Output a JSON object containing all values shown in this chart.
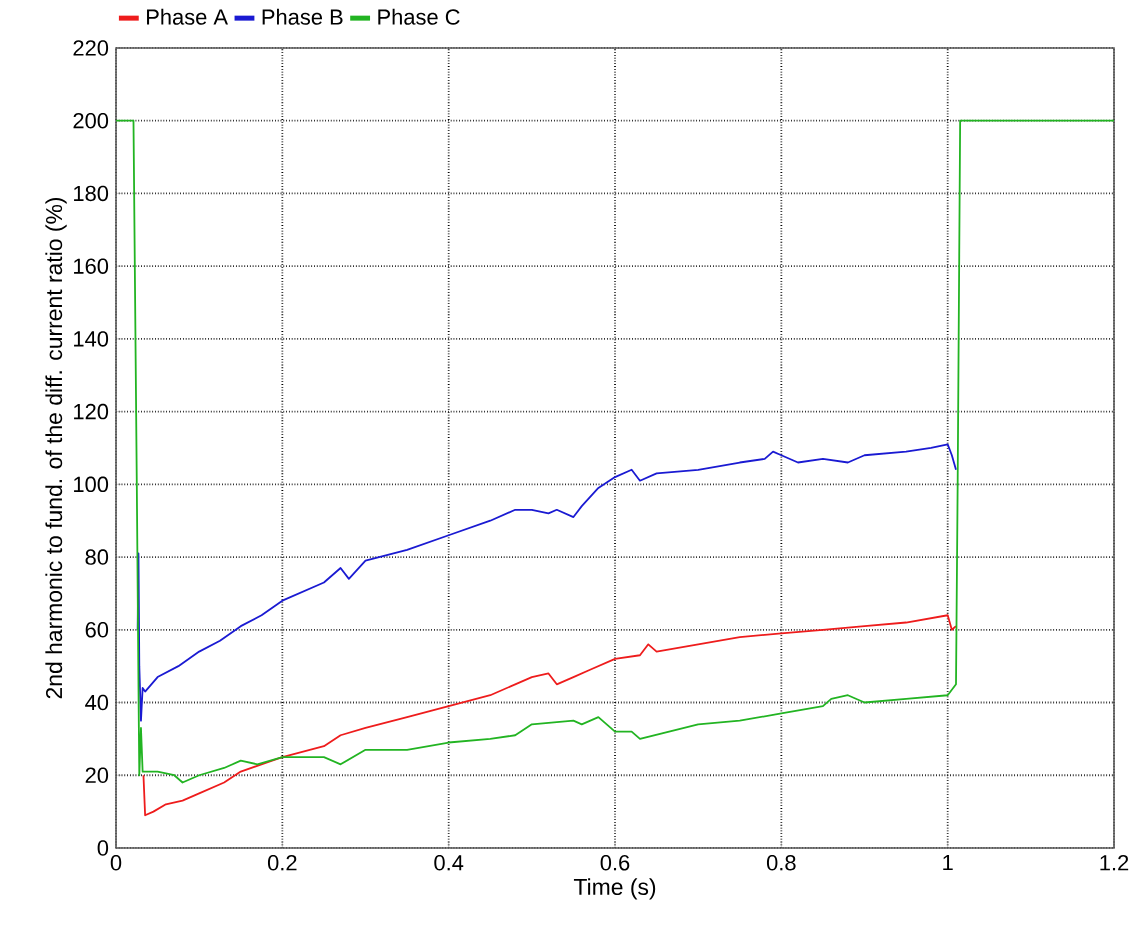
{
  "chart_data": {
    "type": "line",
    "xlabel": "Time (s)",
    "ylabel": "2nd harmonic to fund. of the diff. current ratio (%)",
    "xlim": [
      0,
      1.2
    ],
    "ylim": [
      0,
      220
    ],
    "xticks": [
      0,
      0.2,
      0.4,
      0.6,
      0.8,
      1,
      1.2
    ],
    "yticks": [
      0,
      20,
      40,
      60,
      80,
      100,
      120,
      140,
      160,
      180,
      200,
      220
    ],
    "grid": true,
    "legend": "top",
    "series": [
      {
        "name": "Phase A",
        "color": "#ee1c1c",
        "x": [
          0.033,
          0.035,
          0.045,
          0.06,
          0.08,
          0.1,
          0.13,
          0.15,
          0.2,
          0.25,
          0.27,
          0.3,
          0.35,
          0.4,
          0.45,
          0.48,
          0.5,
          0.52,
          0.53,
          0.55,
          0.57,
          0.6,
          0.63,
          0.64,
          0.65,
          0.7,
          0.75,
          0.8,
          0.85,
          0.9,
          0.95,
          1.0,
          1.005,
          1.01
        ],
        "values": [
          20,
          9,
          10,
          12,
          13,
          15,
          18,
          21,
          25,
          28,
          31,
          33,
          36,
          39,
          42,
          45,
          47,
          48,
          45,
          47,
          49,
          52,
          53,
          56,
          54,
          56,
          58,
          59,
          60,
          61,
          62,
          64,
          60,
          61
        ]
      },
      {
        "name": "Phase B",
        "color": "#1a1ad2",
        "x": [
          0.026,
          0.027,
          0.028,
          0.03,
          0.032,
          0.035,
          0.05,
          0.075,
          0.1,
          0.125,
          0.15,
          0.175,
          0.2,
          0.25,
          0.27,
          0.28,
          0.3,
          0.35,
          0.4,
          0.45,
          0.48,
          0.5,
          0.52,
          0.53,
          0.55,
          0.56,
          0.58,
          0.6,
          0.62,
          0.63,
          0.65,
          0.7,
          0.75,
          0.78,
          0.79,
          0.8,
          0.82,
          0.85,
          0.88,
          0.9,
          0.95,
          0.98,
          1.0,
          1.005,
          1.01
        ],
        "values": [
          60,
          81,
          50,
          35,
          44,
          43,
          47,
          50,
          54,
          57,
          61,
          64,
          68,
          73,
          77,
          74,
          79,
          82,
          86,
          90,
          93,
          93,
          92,
          93,
          91,
          94,
          99,
          102,
          104,
          101,
          103,
          104,
          106,
          107,
          109,
          108,
          106,
          107,
          106,
          108,
          109,
          110,
          111,
          108,
          104
        ]
      },
      {
        "name": "Phase C",
        "color": "#22b422",
        "x": [
          0,
          0.019,
          0.021,
          0.025,
          0.027,
          0.028,
          0.03,
          0.032,
          0.035,
          0.05,
          0.07,
          0.08,
          0.1,
          0.13,
          0.15,
          0.17,
          0.2,
          0.25,
          0.27,
          0.3,
          0.35,
          0.4,
          0.45,
          0.48,
          0.5,
          0.55,
          0.56,
          0.58,
          0.6,
          0.62,
          0.63,
          0.7,
          0.75,
          0.8,
          0.85,
          0.86,
          0.88,
          0.9,
          0.95,
          1.0,
          1.01,
          1.012,
          1.015,
          1.2
        ],
        "values": [
          200,
          200,
          200,
          100,
          45,
          20,
          33,
          21,
          21,
          21,
          20,
          18,
          20,
          22,
          24,
          23,
          25,
          25,
          23,
          27,
          27,
          29,
          30,
          31,
          34,
          35,
          34,
          36,
          32,
          32,
          30,
          34,
          35,
          37,
          39,
          41,
          42,
          40,
          41,
          42,
          45,
          100,
          200,
          200
        ]
      }
    ]
  }
}
